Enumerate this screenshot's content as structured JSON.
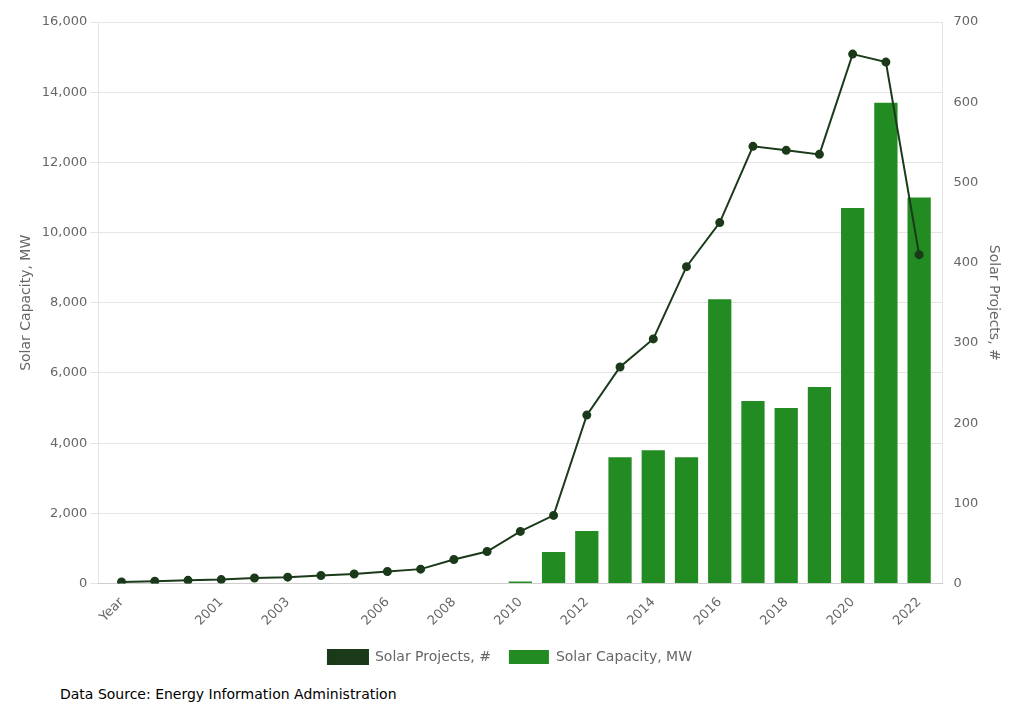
{
  "chart_data": {
    "type": "bar",
    "xlim": [
      1997.3,
      2022.7
    ],
    "xticks": [
      {
        "value": 1998,
        "label": "Year"
      },
      2001,
      2003,
      2006,
      2008,
      2010,
      2012,
      2014,
      2016,
      2018,
      2020,
      2022
    ],
    "ylabel": "Solar Capacity, MW",
    "y2label": "Solar Projects, #",
    "ylim": [
      0,
      16000
    ],
    "yticks": [
      0,
      {
        "value": 2000,
        "label": "2,000"
      },
      {
        "value": 4000,
        "label": "4,000"
      },
      {
        "value": 6000,
        "label": "6,000"
      },
      {
        "value": 8000,
        "label": "8,000"
      },
      {
        "value": 10000,
        "label": "10,000"
      },
      {
        "value": 12000,
        "label": "12,000"
      },
      {
        "value": 14000,
        "label": "14,000"
      },
      {
        "value": 16000,
        "label": "16,000"
      }
    ],
    "y2lim": [
      0,
      700
    ],
    "y2ticks": [
      0,
      100,
      200,
      300,
      400,
      500,
      600,
      700
    ],
    "grid": "y",
    "legend": "bottom",
    "source": "Data Source: Energy Information Administration",
    "series": [
      {
        "name": "Solar Capacity, MW",
        "type": "bar",
        "color": "#228B22",
        "x": [
          2010,
          2011,
          2012,
          2013,
          2014,
          2015,
          2016,
          2017,
          2018,
          2019,
          2020,
          2021,
          2022
        ],
        "values": [
          60,
          900,
          1500,
          3600,
          3800,
          3600,
          8100,
          5200,
          5000,
          5600,
          10700,
          13700,
          11000
        ]
      },
      {
        "name": "Solar Projects, #",
        "type": "line",
        "color": "#1a3a1a",
        "marker": "circle",
        "line_style": "solid",
        "axis": "y2",
        "x": [
          1998,
          1999,
          2000,
          2001,
          2002,
          2003,
          2004,
          2005,
          2006,
          2007,
          2008,
          2009,
          2010,
          2011,
          2012,
          2013,
          2014,
          2015,
          2016,
          2017,
          2018,
          2019,
          2020,
          2021,
          2022
        ],
        "values": [
          2,
          3,
          4,
          5,
          7,
          8,
          10,
          12,
          15,
          18,
          30,
          40,
          65,
          85,
          210,
          270,
          305,
          395,
          450,
          545,
          540,
          535,
          660,
          650,
          410
        ]
      }
    ]
  }
}
